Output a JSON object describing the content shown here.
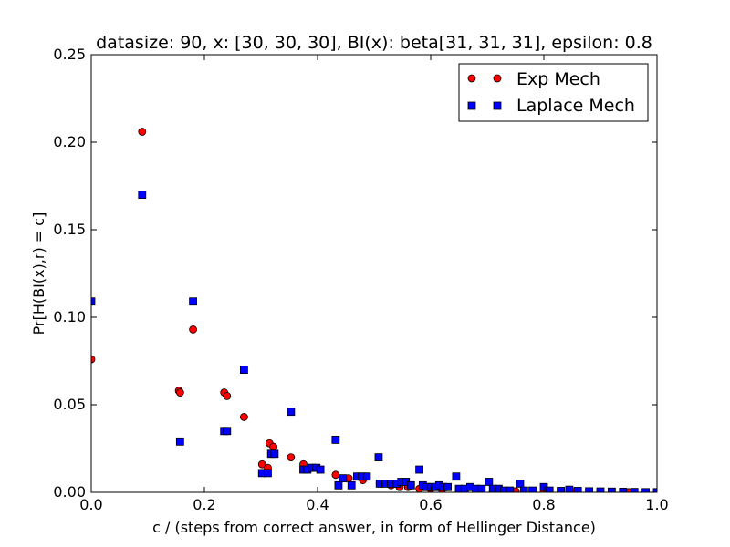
{
  "chart_data": {
    "type": "scatter",
    "title": "datasize: 90, x: [30, 30, 30], BI(x): beta[31, 31, 31], epsilon: 0.8",
    "xlabel": "c / (steps from correct answer, in form of Hellinger Distance)",
    "ylabel": "Pr[H(BI(x),r) = c]",
    "xlim": [
      0.0,
      1.0
    ],
    "ylim": [
      0.0,
      0.25
    ],
    "x_ticks": [
      "0.0",
      "0.2",
      "0.4",
      "0.6",
      "0.8",
      "1.0"
    ],
    "y_ticks": [
      "0.00",
      "0.05",
      "0.10",
      "0.15",
      "0.20",
      "0.25"
    ],
    "grid": false,
    "legend_position": "top-right",
    "series": [
      {
        "name": "Exp Mech",
        "marker": "circle",
        "color": "#ff0000",
        "points": [
          [
            0.0,
            0.076
          ],
          [
            0.09,
            0.206
          ],
          [
            0.155,
            0.058
          ],
          [
            0.157,
            0.057
          ],
          [
            0.18,
            0.093
          ],
          [
            0.235,
            0.057
          ],
          [
            0.24,
            0.055
          ],
          [
            0.27,
            0.043
          ],
          [
            0.302,
            0.016
          ],
          [
            0.312,
            0.014
          ],
          [
            0.315,
            0.028
          ],
          [
            0.322,
            0.026
          ],
          [
            0.353,
            0.02
          ],
          [
            0.375,
            0.016
          ],
          [
            0.39,
            0.014
          ],
          [
            0.432,
            0.01
          ],
          [
            0.455,
            0.008
          ],
          [
            0.48,
            0.007
          ],
          [
            0.51,
            0.005
          ],
          [
            0.53,
            0.004
          ],
          [
            0.545,
            0.003
          ],
          [
            0.56,
            0.003
          ],
          [
            0.58,
            0.002
          ],
          [
            0.6,
            0.002
          ],
          [
            0.62,
            0.0015
          ],
          [
            0.65,
            0.001
          ],
          [
            0.68,
            0.001
          ],
          [
            0.71,
            0.0008
          ],
          [
            0.75,
            0.0006
          ],
          [
            0.8,
            0.0004
          ],
          [
            0.85,
            0.0003
          ],
          [
            0.9,
            0.0002
          ],
          [
            0.95,
            0.0001
          ],
          [
            1.0,
            0.0001
          ]
        ]
      },
      {
        "name": "Laplace Mech",
        "marker": "square",
        "color": "#0000ff",
        "points": [
          [
            0.0,
            0.109
          ],
          [
            0.09,
            0.17
          ],
          [
            0.157,
            0.029
          ],
          [
            0.18,
            0.109
          ],
          [
            0.235,
            0.035
          ],
          [
            0.24,
            0.035
          ],
          [
            0.27,
            0.07
          ],
          [
            0.302,
            0.011
          ],
          [
            0.312,
            0.011
          ],
          [
            0.318,
            0.022
          ],
          [
            0.324,
            0.022
          ],
          [
            0.353,
            0.046
          ],
          [
            0.375,
            0.013
          ],
          [
            0.382,
            0.013
          ],
          [
            0.39,
            0.014
          ],
          [
            0.398,
            0.014
          ],
          [
            0.405,
            0.013
          ],
          [
            0.432,
            0.03
          ],
          [
            0.437,
            0.004
          ],
          [
            0.445,
            0.008
          ],
          [
            0.46,
            0.004
          ],
          [
            0.47,
            0.009
          ],
          [
            0.478,
            0.009
          ],
          [
            0.487,
            0.009
          ],
          [
            0.508,
            0.02
          ],
          [
            0.51,
            0.005
          ],
          [
            0.52,
            0.005
          ],
          [
            0.53,
            0.005
          ],
          [
            0.54,
            0.005
          ],
          [
            0.548,
            0.006
          ],
          [
            0.556,
            0.006
          ],
          [
            0.565,
            0.004
          ],
          [
            0.58,
            0.013
          ],
          [
            0.586,
            0.004
          ],
          [
            0.593,
            0.003
          ],
          [
            0.6,
            0.003
          ],
          [
            0.608,
            0.003
          ],
          [
            0.615,
            0.004
          ],
          [
            0.622,
            0.003
          ],
          [
            0.63,
            0.003
          ],
          [
            0.645,
            0.009
          ],
          [
            0.65,
            0.002
          ],
          [
            0.66,
            0.002
          ],
          [
            0.67,
            0.003
          ],
          [
            0.68,
            0.002
          ],
          [
            0.69,
            0.002
          ],
          [
            0.703,
            0.006
          ],
          [
            0.71,
            0.002
          ],
          [
            0.72,
            0.002
          ],
          [
            0.73,
            0.001
          ],
          [
            0.74,
            0.001
          ],
          [
            0.758,
            0.005
          ],
          [
            0.765,
            0.001
          ],
          [
            0.78,
            0.001
          ],
          [
            0.8,
            0.003
          ],
          [
            0.81,
            0.001
          ],
          [
            0.83,
            0.0008
          ],
          [
            0.845,
            0.0015
          ],
          [
            0.86,
            0.0008
          ],
          [
            0.88,
            0.0006
          ],
          [
            0.9,
            0.0005
          ],
          [
            0.92,
            0.0004
          ],
          [
            0.94,
            0.0003
          ],
          [
            0.96,
            0.0002
          ],
          [
            0.98,
            0.0001
          ],
          [
            1.0,
            0.0001
          ]
        ]
      }
    ]
  }
}
